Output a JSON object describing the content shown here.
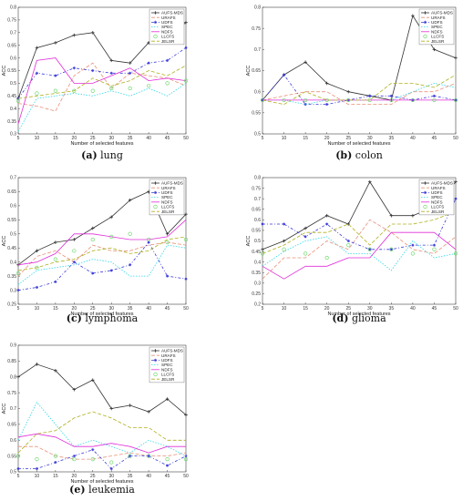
{
  "figure": {
    "styles": {
      "AUFS-MDS": {
        "color": "#333333",
        "dash": "",
        "marker": "plus"
      },
      "URAFS": {
        "color": "#e8907a",
        "dash": "4,2",
        "marker": "none"
      },
      "UDFS": {
        "color": "#3a3ad8",
        "dash": "3,2,1,2",
        "marker": "star"
      },
      "SPEC": {
        "color": "#33d6e8",
        "dash": "1.5,1.5",
        "marker": "none"
      },
      "NDFS": {
        "color": "#e02fd8",
        "dash": "",
        "marker": "none"
      },
      "LLCFS": {
        "color": "#5fd45f",
        "dash": "",
        "marker": "circle",
        "noline": true
      },
      "JELSR": {
        "color": "#b0b020",
        "dash": "4,2",
        "marker": "none"
      }
    }
  },
  "chart_data": [
    {
      "type": "line",
      "caption_letter": "(a)",
      "caption_text": "lung",
      "xlabel": "Number of selected features",
      "ylabel": "ACC",
      "xlim": [
        5,
        50
      ],
      "ylim": [
        0.3,
        0.8
      ],
      "x_ticks": [
        "5",
        "10",
        "15",
        "20",
        "25",
        "30",
        "35",
        "40",
        "45",
        "50"
      ],
      "y_ticks": [
        "0.3",
        "0.35",
        "0.4",
        "0.45",
        "0.5",
        "0.55",
        "0.6",
        "0.65",
        "0.7",
        "0.75",
        "0.8"
      ],
      "x": [
        5,
        10,
        15,
        20,
        25,
        30,
        35,
        40,
        45,
        50
      ],
      "series": [
        {
          "name": "AUFS-MDS",
          "values": [
            0.44,
            0.64,
            0.66,
            0.69,
            0.7,
            0.59,
            0.58,
            0.66,
            0.68,
            0.74
          ]
        },
        {
          "name": "URAFS",
          "values": [
            0.42,
            0.41,
            0.39,
            0.53,
            0.58,
            0.48,
            0.54,
            0.53,
            0.52,
            0.49
          ]
        },
        {
          "name": "UDFS",
          "values": [
            0.44,
            0.54,
            0.53,
            0.56,
            0.55,
            0.54,
            0.54,
            0.58,
            0.59,
            0.64
          ]
        },
        {
          "name": "SPEC",
          "values": [
            0.31,
            0.44,
            0.45,
            0.46,
            0.45,
            0.47,
            0.45,
            0.48,
            0.45,
            0.5
          ]
        },
        {
          "name": "NDFS",
          "values": [
            0.34,
            0.59,
            0.6,
            0.5,
            0.5,
            0.53,
            0.56,
            0.51,
            0.52,
            0.51
          ]
        },
        {
          "name": "LLCFS",
          "values": [
            0.43,
            0.46,
            0.47,
            0.47,
            0.47,
            0.48,
            0.48,
            0.49,
            0.5,
            0.51
          ]
        },
        {
          "name": "JELSR",
          "values": [
            0.44,
            0.45,
            0.46,
            0.47,
            0.52,
            0.49,
            0.51,
            0.55,
            0.53,
            0.57
          ]
        }
      ]
    },
    {
      "type": "line",
      "caption_letter": "(b)",
      "caption_text": "colon",
      "xlabel": "Number of selected features",
      "ylabel": "ACC",
      "xlim": [
        5,
        50
      ],
      "ylim": [
        0.5,
        0.8
      ],
      "x_ticks": [
        "5",
        "10",
        "15",
        "20",
        "25",
        "30",
        "35",
        "40",
        "45",
        "50"
      ],
      "y_ticks": [
        "0.5",
        "0.55",
        "0.6",
        "0.65",
        "0.7",
        "0.75",
        "0.8"
      ],
      "x": [
        5,
        10,
        15,
        20,
        25,
        30,
        35,
        40,
        45,
        50
      ],
      "series": [
        {
          "name": "AUFS-MDS",
          "values": [
            0.58,
            0.64,
            0.67,
            0.62,
            0.6,
            0.59,
            0.58,
            0.78,
            0.7,
            0.68
          ]
        },
        {
          "name": "URAFS",
          "values": [
            0.58,
            0.59,
            0.6,
            0.6,
            0.57,
            0.57,
            0.57,
            0.6,
            0.6,
            0.62
          ]
        },
        {
          "name": "UDFS",
          "values": [
            0.58,
            0.64,
            0.57,
            0.57,
            0.58,
            0.59,
            0.59,
            0.58,
            0.59,
            0.58
          ]
        },
        {
          "name": "SPEC",
          "values": [
            0.58,
            0.58,
            0.57,
            0.58,
            0.58,
            0.58,
            0.58,
            0.6,
            0.62,
            0.61
          ]
        },
        {
          "name": "NDFS",
          "values": [
            0.58,
            0.58,
            0.58,
            0.58,
            0.58,
            0.58,
            0.58,
            0.58,
            0.58,
            0.58
          ]
        },
        {
          "name": "LLCFS",
          "values": [
            0.58,
            0.58,
            0.58,
            0.58,
            0.58,
            0.58,
            0.58,
            0.58,
            0.58,
            0.58
          ]
        },
        {
          "name": "JELSR",
          "values": [
            0.58,
            0.57,
            0.6,
            0.58,
            0.58,
            0.58,
            0.62,
            0.62,
            0.61,
            0.64
          ]
        }
      ]
    },
    {
      "type": "line",
      "caption_letter": "(c)",
      "caption_text": "lymphoma",
      "xlabel": "Number of selected features",
      "ylabel": "ACC",
      "xlim": [
        5,
        50
      ],
      "ylim": [
        0.25,
        0.7
      ],
      "x_ticks": [
        "5",
        "10",
        "15",
        "20",
        "25",
        "30",
        "35",
        "40",
        "45",
        "50"
      ],
      "y_ticks": [
        "0.25",
        "0.3",
        "0.35",
        "0.4",
        "0.45",
        "0.5",
        "0.55",
        "0.6",
        "0.65",
        "0.7"
      ],
      "x": [
        5,
        10,
        15,
        20,
        25,
        30,
        35,
        40,
        45,
        50
      ],
      "series": [
        {
          "name": "AUFS-MDS",
          "values": [
            0.39,
            0.44,
            0.47,
            0.48,
            0.52,
            0.56,
            0.62,
            0.65,
            0.5,
            0.57
          ]
        },
        {
          "name": "URAFS",
          "values": [
            0.35,
            0.42,
            0.44,
            0.4,
            0.46,
            0.44,
            0.44,
            0.46,
            0.47,
            0.46
          ]
        },
        {
          "name": "UDFS",
          "values": [
            0.3,
            0.31,
            0.33,
            0.4,
            0.36,
            0.37,
            0.39,
            0.47,
            0.35,
            0.34
          ]
        },
        {
          "name": "SPEC",
          "values": [
            0.32,
            0.37,
            0.38,
            0.39,
            0.41,
            0.4,
            0.35,
            0.35,
            0.46,
            0.45
          ]
        },
        {
          "name": "NDFS",
          "values": [
            0.39,
            0.4,
            0.43,
            0.5,
            0.5,
            0.49,
            0.48,
            0.48,
            0.49,
            0.55
          ]
        },
        {
          "name": "LLCFS",
          "values": [
            0.36,
            0.38,
            0.41,
            0.44,
            0.48,
            0.49,
            0.5,
            0.48,
            0.47,
            0.48
          ]
        },
        {
          "name": "JELSR",
          "values": [
            0.37,
            0.38,
            0.4,
            0.41,
            0.44,
            0.45,
            0.43,
            0.44,
            0.48,
            0.49
          ]
        }
      ]
    },
    {
      "type": "line",
      "caption_letter": "(d)",
      "caption_text": "glioma",
      "xlabel": "Number of selected features",
      "ylabel": "ACC",
      "xlim": [
        5,
        50
      ],
      "ylim": [
        0.2,
        0.8
      ],
      "x_ticks": [
        "5",
        "10",
        "15",
        "20",
        "25",
        "30",
        "35",
        "40",
        "45",
        "50"
      ],
      "y_ticks": [
        "0.2",
        "0.25",
        "0.3",
        "0.35",
        "0.4",
        "0.45",
        "0.5",
        "0.55",
        "0.6",
        "0.65",
        "0.7",
        "0.75",
        "0.8"
      ],
      "x": [
        5,
        10,
        15,
        20,
        25,
        30,
        35,
        40,
        45,
        50
      ],
      "series": [
        {
          "name": "AUFS-MDS",
          "values": [
            0.46,
            0.5,
            0.56,
            0.62,
            0.58,
            0.78,
            0.62,
            0.62,
            0.66,
            0.78
          ]
        },
        {
          "name": "URAFS",
          "values": [
            0.32,
            0.42,
            0.42,
            0.5,
            0.46,
            0.6,
            0.54,
            0.46,
            0.44,
            0.52
          ]
        },
        {
          "name": "UDFS",
          "values": [
            0.58,
            0.58,
            0.52,
            0.58,
            0.5,
            0.46,
            0.46,
            0.48,
            0.48,
            0.7
          ]
        },
        {
          "name": "SPEC",
          "values": [
            0.38,
            0.45,
            0.5,
            0.52,
            0.44,
            0.44,
            0.36,
            0.5,
            0.42,
            0.44
          ]
        },
        {
          "name": "NDFS",
          "values": [
            0.38,
            0.32,
            0.38,
            0.38,
            0.42,
            0.42,
            0.54,
            0.54,
            0.54,
            0.46
          ]
        },
        {
          "name": "LLCFS",
          "values": [
            0.44,
            0.46,
            0.44,
            0.42,
            0.48,
            0.46,
            0.46,
            0.44,
            0.46,
            0.44
          ]
        },
        {
          "name": "JELSR",
          "values": [
            0.44,
            0.48,
            0.54,
            0.54,
            0.58,
            0.48,
            0.58,
            0.58,
            0.6,
            0.64
          ]
        }
      ]
    },
    {
      "type": "line",
      "caption_letter": "(e)",
      "caption_text": "leukemia",
      "xlabel": "Number of selected features",
      "ylabel": "ACC",
      "xlim": [
        5,
        50
      ],
      "ylim": [
        0.5,
        0.9
      ],
      "x_ticks": [
        "5",
        "10",
        "15",
        "20",
        "25",
        "30",
        "35",
        "40",
        "45",
        "50"
      ],
      "y_ticks": [
        "0.5",
        "0.55",
        "0.6",
        "0.65",
        "0.7",
        "0.75",
        "0.8",
        "0.85",
        "0.9"
      ],
      "x": [
        5,
        10,
        15,
        20,
        25,
        30,
        35,
        40,
        45,
        50
      ],
      "series": [
        {
          "name": "AUFS-MDS",
          "values": [
            0.8,
            0.84,
            0.82,
            0.76,
            0.79,
            0.7,
            0.71,
            0.69,
            0.73,
            0.68
          ]
        },
        {
          "name": "URAFS",
          "values": [
            0.58,
            0.58,
            0.55,
            0.54,
            0.54,
            0.55,
            0.56,
            0.55,
            0.55,
            0.56
          ]
        },
        {
          "name": "UDFS",
          "values": [
            0.51,
            0.51,
            0.53,
            0.55,
            0.57,
            0.51,
            0.55,
            0.55,
            0.52,
            0.55
          ]
        },
        {
          "name": "SPEC",
          "values": [
            0.6,
            0.72,
            0.65,
            0.58,
            0.6,
            0.58,
            0.56,
            0.6,
            0.58,
            0.55
          ]
        },
        {
          "name": "NDFS",
          "values": [
            0.61,
            0.62,
            0.61,
            0.58,
            0.58,
            0.59,
            0.58,
            0.56,
            0.58,
            0.58
          ]
        },
        {
          "name": "LLCFS",
          "values": [
            0.55,
            0.54,
            0.55,
            0.54,
            0.54,
            0.53,
            0.55,
            0.55,
            0.54,
            0.54
          ]
        },
        {
          "name": "JELSR",
          "values": [
            0.56,
            0.62,
            0.63,
            0.67,
            0.69,
            0.67,
            0.64,
            0.64,
            0.6,
            0.6
          ]
        }
      ]
    }
  ]
}
